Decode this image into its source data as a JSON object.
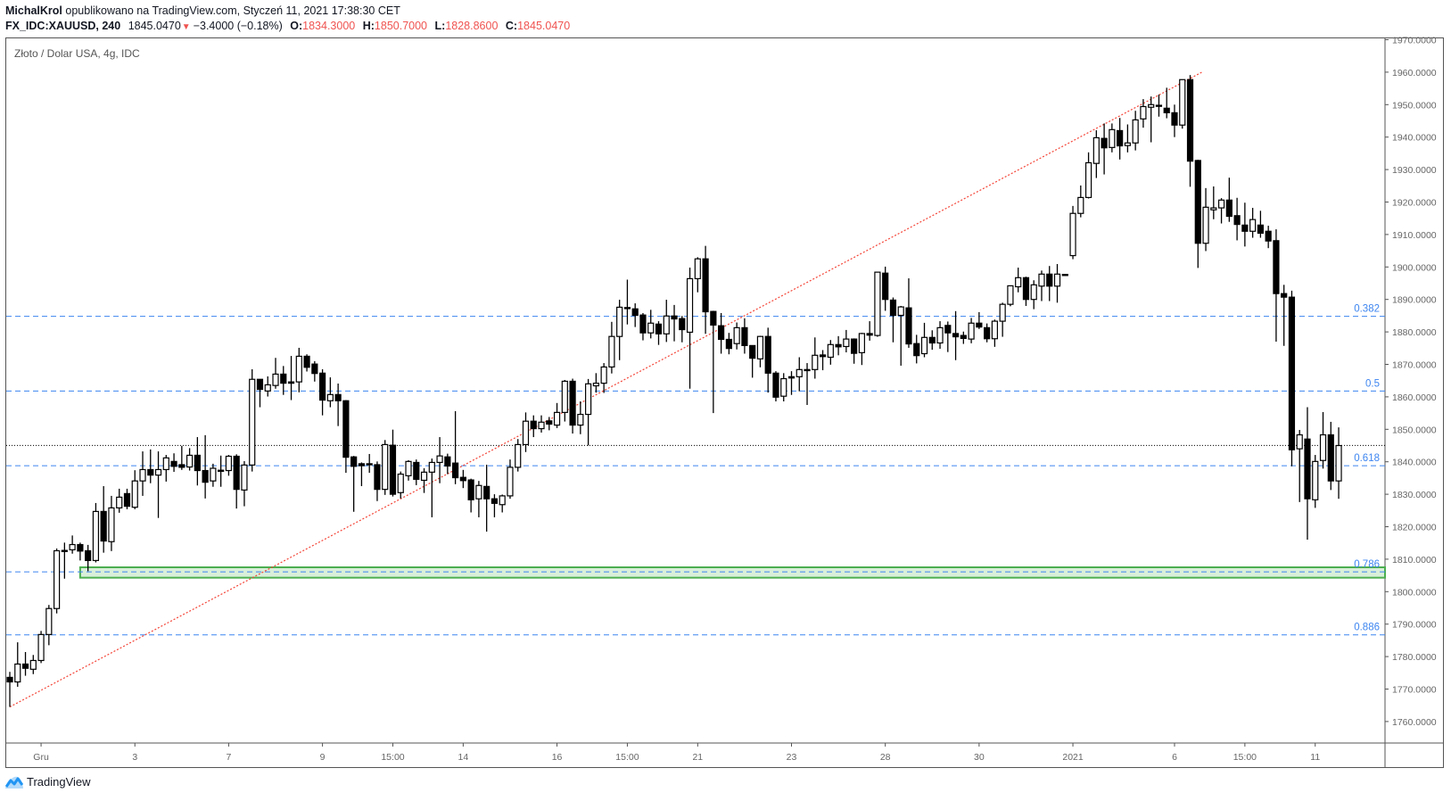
{
  "header": {
    "author": "MichalKrol",
    "published_text": "opublikowano na TradingView.com, Styczeń 11, 2021 17:38:30 CET",
    "symbol": "FX_IDC:XAUUSD, 240",
    "last_price": "1845.0470",
    "change": "−3.4000 (−0.18%)",
    "open_label": "O:",
    "open": "1834.3000",
    "high_label": "H:",
    "high": "1850.7000",
    "low_label": "L:",
    "low": "1828.8600",
    "close_label": "C:",
    "close": "1845.0470"
  },
  "chart_title": "Złoto / Dolar USA, 4g, IDC",
  "brand": "TradingView",
  "colors": {
    "up_body": "#ffffff",
    "down_body": "#000000",
    "wick": "#000000",
    "fib_line": "#3d85f0",
    "trendline": "#f44336",
    "zone_fill": "#d9efd9",
    "zone_stroke": "#4caf50",
    "price_down": "#ef5350",
    "brand": "#2196f3"
  },
  "chart_data": {
    "type": "candlestick",
    "title": "Złoto / Dolar USA, 4g, IDC",
    "ylabel": "",
    "xlabel": "",
    "ylim": [
      1755,
      1972
    ],
    "y_ticks": [
      "1760.0000",
      "1770.0000",
      "1780.0000",
      "1790.0000",
      "1800.0000",
      "1810.0000",
      "1820.0000",
      "1830.0000",
      "1840.0000",
      "1850.0000",
      "1860.0000",
      "1870.0000",
      "1880.0000",
      "1890.0000",
      "1900.0000",
      "1910.0000",
      "1920.0000",
      "1930.0000",
      "1940.0000",
      "1950.0000",
      "1960.0000",
      "1970.0000"
    ],
    "x_ticks": [
      {
        "label": "Gru",
        "bar": 4
      },
      {
        "label": "3",
        "bar": 16
      },
      {
        "label": "7",
        "bar": 28
      },
      {
        "label": "9",
        "bar": 40
      },
      {
        "label": "15:00",
        "bar": 49
      },
      {
        "label": "14",
        "bar": 58
      },
      {
        "label": "16",
        "bar": 70
      },
      {
        "label": "15:00",
        "bar": 79
      },
      {
        "label": "21",
        "bar": 88
      },
      {
        "label": "23",
        "bar": 100
      },
      {
        "label": "28",
        "bar": 112
      },
      {
        "label": "30",
        "bar": 124
      },
      {
        "label": "2021",
        "bar": 136
      },
      {
        "label": "6",
        "bar": 149
      },
      {
        "label": "15:00",
        "bar": 158
      },
      {
        "label": "11",
        "bar": 167
      }
    ],
    "ohlc_fields": [
      "open",
      "high",
      "low",
      "close"
    ],
    "candles": [
      [
        1773.6,
        1775.3,
        1764.5,
        1772.2
      ],
      [
        1772.2,
        1784.4,
        1770.7,
        1777.7
      ],
      [
        1777.7,
        1781.4,
        1774.1,
        1776.4
      ],
      [
        1776.1,
        1780.5,
        1774.6,
        1778.8
      ],
      [
        1778.8,
        1787.9,
        1778.0,
        1786.8
      ],
      [
        1786.8,
        1795.9,
        1783.5,
        1794.8
      ],
      [
        1794.8,
        1813.3,
        1793.3,
        1812.6
      ],
      [
        1812.6,
        1815.1,
        1804.0,
        1812.7
      ],
      [
        1812.9,
        1817.3,
        1811.7,
        1814.5
      ],
      [
        1814.5,
        1815.1,
        1809.6,
        1812.5
      ],
      [
        1812.6,
        1814.4,
        1806.3,
        1809.6
      ],
      [
        1809.6,
        1827.3,
        1809.0,
        1824.7
      ],
      [
        1824.7,
        1832.5,
        1812.0,
        1815.6
      ],
      [
        1815.4,
        1829.5,
        1812.5,
        1825.8
      ],
      [
        1825.8,
        1831.7,
        1824.3,
        1829.1
      ],
      [
        1830.2,
        1831.7,
        1825.4,
        1826.3
      ],
      [
        1826.0,
        1837.4,
        1825.4,
        1834.1
      ],
      [
        1834.1,
        1843.2,
        1829.5,
        1837.6
      ],
      [
        1837.6,
        1843.8,
        1833.4,
        1835.9
      ],
      [
        1835.9,
        1843.2,
        1822.7,
        1837.6
      ],
      [
        1837.6,
        1842.1,
        1833.9,
        1841.2
      ],
      [
        1840.1,
        1842.6,
        1836.9,
        1838.6
      ],
      [
        1839.1,
        1844.9,
        1837.5,
        1838.3
      ],
      [
        1838.4,
        1844.2,
        1837.3,
        1842.0
      ],
      [
        1842.0,
        1847.6,
        1832.7,
        1837.3
      ],
      [
        1837.3,
        1848.2,
        1828.7,
        1833.7
      ],
      [
        1834.1,
        1839.4,
        1832.3,
        1838.0
      ],
      [
        1837.3,
        1841.9,
        1832.3,
        1837.4
      ],
      [
        1837.3,
        1842.1,
        1835.7,
        1841.7
      ],
      [
        1841.7,
        1842.3,
        1825.6,
        1831.5
      ],
      [
        1831.3,
        1840.2,
        1826.3,
        1839.0
      ],
      [
        1839.0,
        1868.5,
        1837.0,
        1865.4
      ],
      [
        1865.4,
        1865.4,
        1856.8,
        1862.3
      ],
      [
        1861.8,
        1866.3,
        1860.1,
        1863.7
      ],
      [
        1863.5,
        1872.0,
        1862.5,
        1867.0
      ],
      [
        1867.0,
        1869.5,
        1860.6,
        1864.2
      ],
      [
        1864.6,
        1872.6,
        1859.0,
        1864.2
      ],
      [
        1864.6,
        1875.1,
        1861.4,
        1872.5
      ],
      [
        1872.5,
        1873.1,
        1867.8,
        1869.1
      ],
      [
        1870.1,
        1871.0,
        1864.7,
        1867.2
      ],
      [
        1867.3,
        1868.5,
        1854.3,
        1859.0
      ],
      [
        1858.8,
        1866.0,
        1856.8,
        1860.7
      ],
      [
        1860.7,
        1864.1,
        1851.0,
        1858.8
      ],
      [
        1858.8,
        1859.0,
        1836.6,
        1841.4
      ],
      [
        1841.5,
        1841.8,
        1824.6,
        1838.6
      ],
      [
        1839.4,
        1839.8,
        1832.5,
        1838.8
      ],
      [
        1839.3,
        1842.4,
        1836.6,
        1839.4
      ],
      [
        1839.1,
        1840.1,
        1827.9,
        1831.5
      ],
      [
        1831.5,
        1846.7,
        1829.8,
        1845.3
      ],
      [
        1845.1,
        1849.9,
        1829.3,
        1830.0
      ],
      [
        1830.5,
        1837.0,
        1828.7,
        1836.2
      ],
      [
        1835.7,
        1840.5,
        1834.2,
        1840.1
      ],
      [
        1839.8,
        1840.7,
        1832.8,
        1834.6
      ],
      [
        1834.3,
        1838.0,
        1830.4,
        1836.8
      ],
      [
        1836.8,
        1841.0,
        1822.9,
        1839.8
      ],
      [
        1839.8,
        1847.6,
        1833.4,
        1841.8
      ],
      [
        1841.5,
        1842.5,
        1836.2,
        1838.7
      ],
      [
        1839.6,
        1855.6,
        1833.1,
        1835.1
      ],
      [
        1835.2,
        1837.5,
        1831.9,
        1834.2
      ],
      [
        1834.4,
        1834.8,
        1824.4,
        1828.3
      ],
      [
        1828.6,
        1834.1,
        1822.9,
        1832.7
      ],
      [
        1832.4,
        1839.1,
        1818.5,
        1828.6
      ],
      [
        1828.6,
        1830.0,
        1822.9,
        1827.2
      ],
      [
        1826.8,
        1829.9,
        1824.4,
        1829.5
      ],
      [
        1829.5,
        1840.7,
        1828.6,
        1838.3
      ],
      [
        1838.3,
        1847.0,
        1837.0,
        1845.3
      ],
      [
        1845.3,
        1855.2,
        1843.0,
        1852.5
      ],
      [
        1852.5,
        1854.3,
        1847.6,
        1850.2
      ],
      [
        1850.2,
        1854.3,
        1849.0,
        1852.2
      ],
      [
        1852.6,
        1853.8,
        1849.7,
        1851.6
      ],
      [
        1851.3,
        1858.1,
        1850.4,
        1855.2
      ],
      [
        1855.2,
        1865.2,
        1852.4,
        1864.8
      ],
      [
        1864.8,
        1865.6,
        1848.7,
        1851.3
      ],
      [
        1851.3,
        1858.6,
        1848.5,
        1854.6
      ],
      [
        1854.6,
        1865.5,
        1845.0,
        1864.0
      ],
      [
        1863.4,
        1867.3,
        1861.3,
        1864.2
      ],
      [
        1864.2,
        1870.4,
        1861.2,
        1869.2
      ],
      [
        1869.2,
        1883.1,
        1867.2,
        1878.6
      ],
      [
        1878.6,
        1889.9,
        1871.3,
        1887.6
      ],
      [
        1887.4,
        1896.1,
        1882.3,
        1887.5
      ],
      [
        1887.1,
        1888.8,
        1881.5,
        1885.1
      ],
      [
        1885.2,
        1885.8,
        1877.4,
        1879.7
      ],
      [
        1879.7,
        1886.8,
        1878.0,
        1882.7
      ],
      [
        1882.4,
        1883.3,
        1876.0,
        1879.4
      ],
      [
        1879.4,
        1889.9,
        1876.9,
        1884.9
      ],
      [
        1884.9,
        1888.3,
        1877.1,
        1884.0
      ],
      [
        1884.1,
        1884.9,
        1876.8,
        1880.7
      ],
      [
        1879.9,
        1899.8,
        1862.5,
        1896.4
      ],
      [
        1896.4,
        1903.0,
        1892.2,
        1902.5
      ],
      [
        1902.5,
        1906.5,
        1879.4,
        1886.2
      ],
      [
        1886.3,
        1886.5,
        1855.0,
        1882.1
      ],
      [
        1881.9,
        1885.8,
        1873.3,
        1877.7
      ],
      [
        1877.7,
        1879.7,
        1873.1,
        1874.9
      ],
      [
        1876.4,
        1882.9,
        1874.6,
        1881.3
      ],
      [
        1881.3,
        1884.2,
        1873.3,
        1875.8
      ],
      [
        1875.8,
        1875.8,
        1865.9,
        1871.9
      ],
      [
        1871.7,
        1878.8,
        1869.1,
        1878.6
      ],
      [
        1878.6,
        1881.3,
        1861.3,
        1867.3
      ],
      [
        1867.3,
        1867.9,
        1858.6,
        1859.9
      ],
      [
        1860.2,
        1867.3,
        1858.6,
        1865.6
      ],
      [
        1866.2,
        1867.9,
        1860.6,
        1865.8
      ],
      [
        1866.2,
        1872.2,
        1861.7,
        1868.4
      ],
      [
        1868.4,
        1870.4,
        1857.5,
        1868.4
      ],
      [
        1868.4,
        1878.3,
        1865.6,
        1872.8
      ],
      [
        1872.9,
        1874.4,
        1868.2,
        1872.4
      ],
      [
        1872.2,
        1877.5,
        1869.9,
        1876.1
      ],
      [
        1876.1,
        1878.7,
        1872.8,
        1875.4
      ],
      [
        1875.5,
        1880.6,
        1873.7,
        1877.8
      ],
      [
        1877.8,
        1878.0,
        1870.2,
        1873.4
      ],
      [
        1873.6,
        1879.7,
        1869.8,
        1879.5
      ],
      [
        1879.5,
        1883.3,
        1877.3,
        1879.0
      ],
      [
        1878.9,
        1898.4,
        1878.5,
        1898.4
      ],
      [
        1898.1,
        1900.1,
        1886.5,
        1890.0
      ],
      [
        1889.8,
        1890.6,
        1876.8,
        1885.1
      ],
      [
        1885.1,
        1888.0,
        1869.6,
        1887.7
      ],
      [
        1887.4,
        1896.5,
        1875.1,
        1876.3
      ],
      [
        1876.4,
        1879.1,
        1870.3,
        1872.7
      ],
      [
        1873.3,
        1882.8,
        1872.2,
        1878.3
      ],
      [
        1878.3,
        1880.5,
        1874.5,
        1876.6
      ],
      [
        1876.6,
        1883.3,
        1874.8,
        1881.3
      ],
      [
        1882.0,
        1883.2,
        1873.8,
        1879.7
      ],
      [
        1879.5,
        1886.4,
        1871.3,
        1878.5
      ],
      [
        1878.9,
        1880.1,
        1876.3,
        1878.0
      ],
      [
        1877.8,
        1884.3,
        1876.5,
        1882.7
      ],
      [
        1882.7,
        1886.1,
        1880.9,
        1881.5
      ],
      [
        1881.3,
        1882.6,
        1876.8,
        1877.9
      ],
      [
        1877.9,
        1883.8,
        1875.4,
        1883.3
      ],
      [
        1883.3,
        1889.0,
        1878.5,
        1888.5
      ],
      [
        1888.5,
        1894.2,
        1887.9,
        1894.2
      ],
      [
        1893.9,
        1899.8,
        1892.2,
        1896.7
      ],
      [
        1896.7,
        1897.0,
        1888.0,
        1890.0
      ],
      [
        1890.0,
        1895.9,
        1887.0,
        1894.5
      ],
      [
        1894.1,
        1898.9,
        1889.5,
        1897.8
      ],
      [
        1897.8,
        1900.3,
        1889.5,
        1894.1
      ],
      [
        1894.1,
        1900.9,
        1889.0,
        1897.8
      ],
      [
        1897.7,
        1897.8,
        1897.3,
        1897.4
      ],
      [
        1903.5,
        1918.8,
        1902.4,
        1916.5
      ],
      [
        1916.5,
        1925.1,
        1915.3,
        1921.4
      ],
      [
        1921.4,
        1935.3,
        1921.1,
        1932.1
      ],
      [
        1931.9,
        1942.1,
        1927.4,
        1939.8
      ],
      [
        1939.6,
        1944.2,
        1928.5,
        1936.7
      ],
      [
        1936.8,
        1944.2,
        1935.3,
        1942.3
      ],
      [
        1942.0,
        1945.9,
        1933.1,
        1937.3
      ],
      [
        1937.4,
        1943.9,
        1935.3,
        1938.2
      ],
      [
        1938.2,
        1948.1,
        1935.9,
        1945.3
      ],
      [
        1945.6,
        1951.7,
        1942.9,
        1949.4
      ],
      [
        1949.2,
        1952.5,
        1938.4,
        1950.0
      ],
      [
        1949.7,
        1953.1,
        1946.3,
        1949.8
      ],
      [
        1948.9,
        1955.2,
        1945.8,
        1947.5
      ],
      [
        1947.5,
        1950.0,
        1940.0,
        1943.7
      ],
      [
        1943.7,
        1957.7,
        1942.6,
        1957.7
      ],
      [
        1957.7,
        1959.1,
        1924.7,
        1932.6
      ],
      [
        1932.8,
        1933.0,
        1899.7,
        1907.3
      ],
      [
        1907.3,
        1924.3,
        1904.9,
        1918.4
      ],
      [
        1917.6,
        1924.8,
        1914.7,
        1918.2
      ],
      [
        1918.2,
        1921.2,
        1913.4,
        1920.6
      ],
      [
        1920.6,
        1927.5,
        1913.9,
        1915.6
      ],
      [
        1915.8,
        1921.3,
        1908.2,
        1913.1
      ],
      [
        1912.9,
        1919.8,
        1906.3,
        1911.0
      ],
      [
        1911.0,
        1918.2,
        1909.0,
        1914.6
      ],
      [
        1912.9,
        1917.3,
        1909.0,
        1910.4
      ],
      [
        1911.0,
        1912.7,
        1905.8,
        1908.0
      ],
      [
        1908.1,
        1911.6,
        1877.0,
        1891.8
      ],
      [
        1891.8,
        1894.5,
        1875.7,
        1890.7
      ],
      [
        1890.7,
        1892.7,
        1838.6,
        1843.7
      ],
      [
        1844.0,
        1849.8,
        1827.6,
        1848.3
      ],
      [
        1847.0,
        1856.8,
        1816.0,
        1828.6
      ],
      [
        1828.3,
        1842.1,
        1825.8,
        1840.1
      ],
      [
        1840.4,
        1855.3,
        1837.9,
        1848.3
      ],
      [
        1848.3,
        1852.3,
        1831.3,
        1834.1
      ],
      [
        1834.1,
        1850.6,
        1828.6,
        1845.0
      ]
    ],
    "current_price": 1845.047,
    "fib_levels": [
      {
        "label": "0.382",
        "value": 1884.8
      },
      {
        "label": "0.5",
        "value": 1861.8
      },
      {
        "label": "0.618",
        "value": 1838.8
      },
      {
        "label": "0.786",
        "value": 1806.1
      },
      {
        "label": "0.886",
        "value": 1786.7
      }
    ],
    "trendline": {
      "from_bar": 0,
      "from_value": 1764.5,
      "to_bar": 152.5,
      "to_value": 1960.0
    },
    "support_zone": {
      "from_bar": 9,
      "low": 1804.3,
      "high": 1807.5
    },
    "grid": false,
    "legend": "none"
  }
}
